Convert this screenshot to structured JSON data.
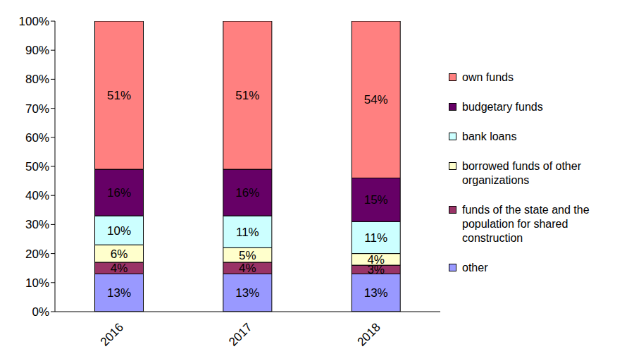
{
  "chart_data": {
    "type": "bar",
    "stacked": true,
    "data_labels": true,
    "grid": false,
    "legend": "right",
    "categories": [
      "2016",
      "2017",
      "2018"
    ],
    "ylim": [
      0,
      100
    ],
    "yticks": [
      {
        "value": 0,
        "label": "0%"
      },
      {
        "value": 10,
        "label": "10%"
      },
      {
        "value": 20,
        "label": "20%"
      },
      {
        "value": 30,
        "label": "30%"
      },
      {
        "value": 40,
        "label": "40%"
      },
      {
        "value": 50,
        "label": "50%"
      },
      {
        "value": 60,
        "label": "60%"
      },
      {
        "value": 70,
        "label": "70%"
      },
      {
        "value": 80,
        "label": "80%"
      },
      {
        "value": 90,
        "label": "90%"
      },
      {
        "value": 100,
        "label": "100%"
      }
    ],
    "series": [
      {
        "name": "other",
        "color": "#9999ff",
        "values": [
          13,
          13,
          13
        ],
        "value_labels": [
          "13%",
          "13%",
          "13%"
        ]
      },
      {
        "name": "funds of the state and the population for shared construction",
        "color": "#993366",
        "values": [
          4,
          4,
          3
        ],
        "value_labels": [
          "4%",
          "4%",
          "3%"
        ]
      },
      {
        "name": "borrowed funds of other organizations",
        "color": "#ffffcc",
        "values": [
          6,
          5,
          4
        ],
        "value_labels": [
          "6%",
          "5%",
          "4%"
        ]
      },
      {
        "name": "bank loans",
        "color": "#ccffff",
        "values": [
          10,
          11,
          11
        ],
        "value_labels": [
          "10%",
          "11%",
          "11%"
        ]
      },
      {
        "name": "budgetary funds",
        "color": "#660066",
        "values": [
          16,
          16,
          15
        ],
        "value_labels": [
          "16%",
          "16%",
          "15%"
        ]
      },
      {
        "name": "own funds",
        "color": "#ff8080",
        "values": [
          51,
          51,
          54
        ],
        "value_labels": [
          "51%",
          "51%",
          "54%"
        ]
      }
    ]
  }
}
